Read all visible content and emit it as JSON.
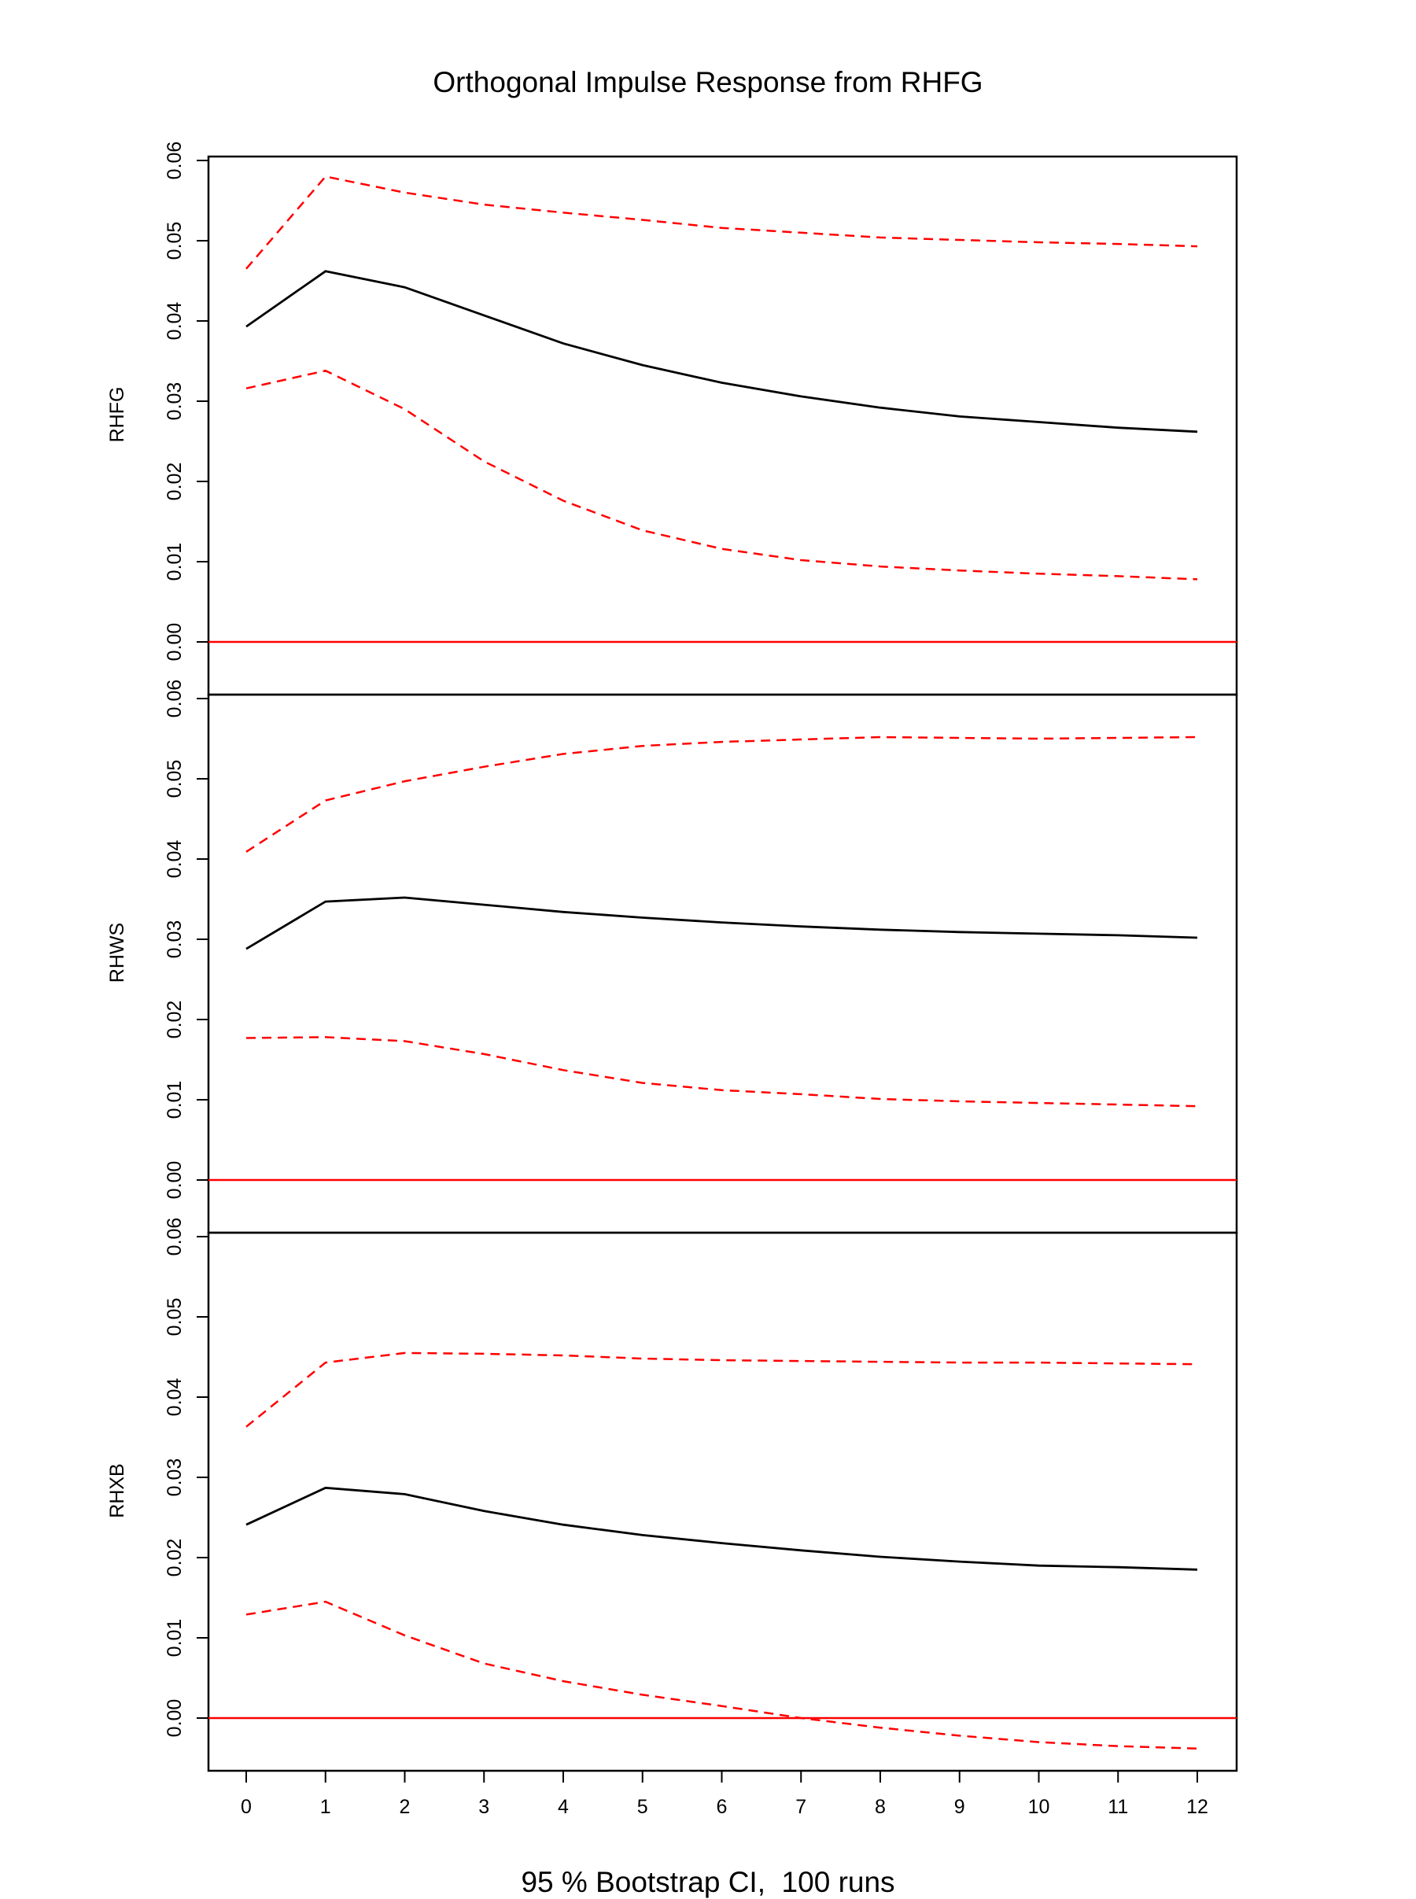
{
  "title": "Orthogonal Impulse Response from RHFG",
  "footer": "95 % Bootstrap CI,  100 runs",
  "colors": {
    "response": "#000000",
    "ci": "#ff0000",
    "zero_line": "#ff0000",
    "frame": "#000000"
  },
  "chart_data": {
    "type": "line",
    "x": [
      0,
      1,
      2,
      3,
      4,
      5,
      6,
      7,
      8,
      9,
      10,
      11,
      12
    ],
    "x_ticks": [
      "0",
      "1",
      "2",
      "3",
      "4",
      "5",
      "6",
      "7",
      "8",
      "9",
      "10",
      "11",
      "12"
    ],
    "ylim": [
      0,
      0.06
    ],
    "y_ticks": [
      "0.00",
      "0.01",
      "0.02",
      "0.03",
      "0.04",
      "0.05",
      "0.06"
    ],
    "reference_line": 0,
    "panels": [
      {
        "ylabel": "RHFG",
        "response": [
          0.0393,
          0.0462,
          0.0442,
          0.0407,
          0.0372,
          0.0345,
          0.0323,
          0.0306,
          0.0292,
          0.0281,
          0.0274,
          0.0267,
          0.0262
        ],
        "upper": [
          0.0465,
          0.058,
          0.056,
          0.0545,
          0.0535,
          0.0526,
          0.0516,
          0.051,
          0.0504,
          0.0501,
          0.0498,
          0.0496,
          0.0493
        ],
        "lower": [
          0.0316,
          0.0338,
          0.029,
          0.0225,
          0.0176,
          0.0139,
          0.0116,
          0.0102,
          0.0094,
          0.0089,
          0.0085,
          0.0082,
          0.0078
        ]
      },
      {
        "ylabel": "RHWS",
        "response": [
          0.0288,
          0.0347,
          0.0352,
          0.0343,
          0.0334,
          0.0327,
          0.0321,
          0.0316,
          0.0312,
          0.0309,
          0.0307,
          0.0305,
          0.0302
        ],
        "upper": [
          0.0409,
          0.0473,
          0.0497,
          0.0515,
          0.0531,
          0.0541,
          0.0546,
          0.0549,
          0.0552,
          0.0551,
          0.055,
          0.0551,
          0.0552
        ],
        "lower": [
          0.0177,
          0.0178,
          0.0173,
          0.0157,
          0.0137,
          0.0121,
          0.0112,
          0.0107,
          0.0101,
          0.0098,
          0.0096,
          0.0094,
          0.0092
        ]
      },
      {
        "ylabel": "RHXB",
        "response": [
          0.0241,
          0.0287,
          0.0279,
          0.0258,
          0.0241,
          0.0228,
          0.0218,
          0.0209,
          0.0201,
          0.0195,
          0.019,
          0.0188,
          0.0185
        ],
        "upper": [
          0.0363,
          0.0443,
          0.0455,
          0.0454,
          0.0452,
          0.0448,
          0.0446,
          0.0445,
          0.0444,
          0.0443,
          0.0443,
          0.0442,
          0.0441
        ],
        "lower": [
          0.0129,
          0.0145,
          0.0103,
          0.0068,
          0.0046,
          0.0029,
          0.0015,
          0.0,
          -0.0012,
          -0.0022,
          -0.003,
          -0.0035,
          -0.0038
        ]
      }
    ]
  }
}
